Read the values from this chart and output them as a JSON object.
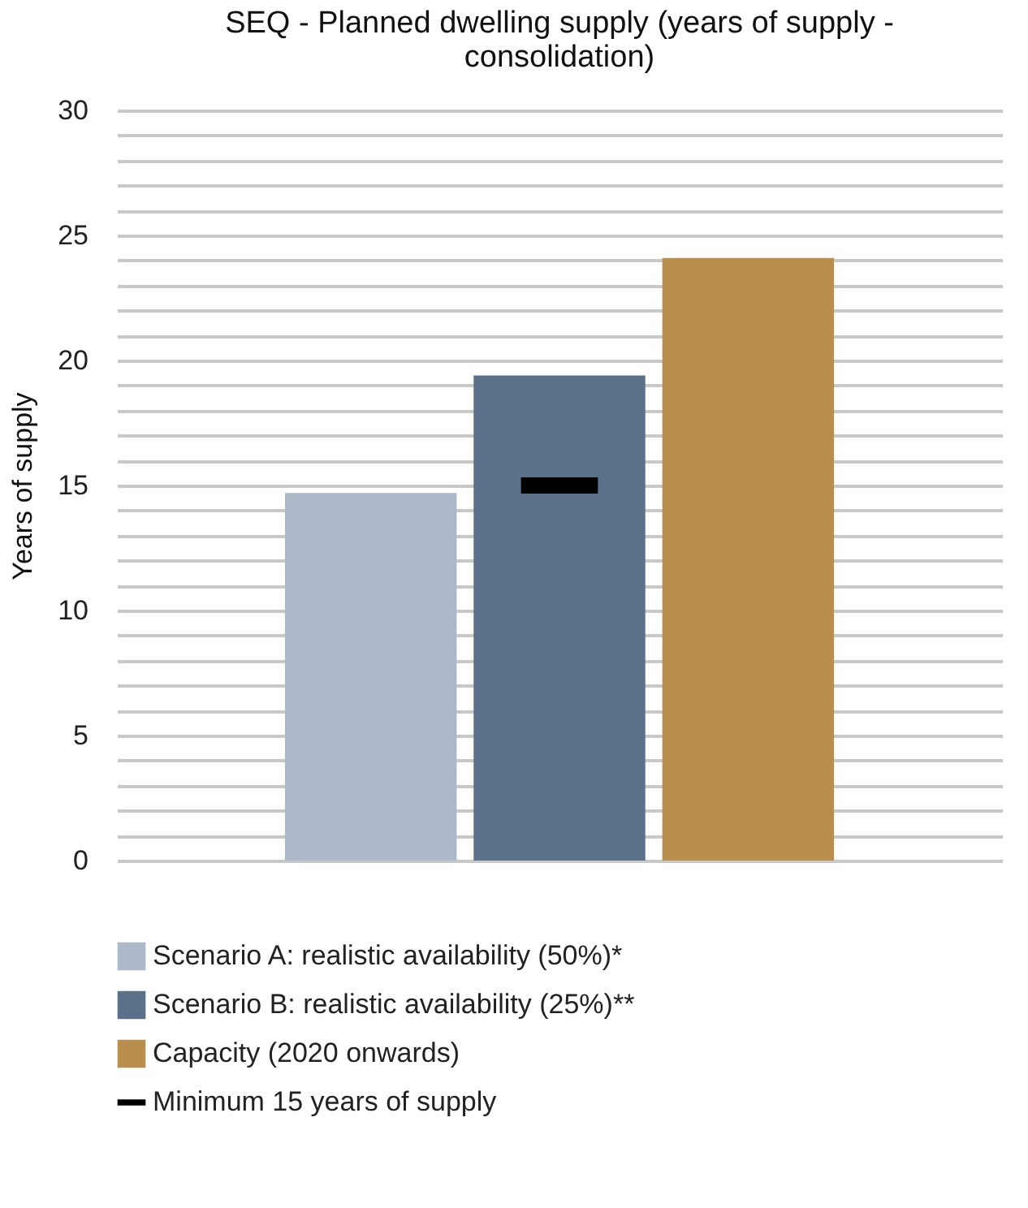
{
  "chart_data": {
    "type": "bar",
    "title": "SEQ - Planned dwelling supply (years of supply - consolidation)",
    "ylabel": "Years of supply",
    "categories": [
      null
    ],
    "series": [
      {
        "name": "Scenario A: realistic availability (50%)*",
        "color": "#adb9ca",
        "values": [
          14.7
        ]
      },
      {
        "name": "Scenario B: realistic availability (25%)**",
        "color": "#5b7089",
        "values": [
          19.4
        ]
      },
      {
        "name": "Capacity (2020 onwards)",
        "color": "#ba8e4c",
        "values": [
          24.1
        ]
      }
    ],
    "ref_lines": [
      {
        "axis": "y",
        "value": 15,
        "label": "Minimum 15 years of supply",
        "color": "#000000"
      }
    ],
    "ylim": [
      0,
      30
    ],
    "yticks": [
      0,
      {
        "value": 1,
        "label": null
      },
      {
        "value": 2,
        "label": null
      },
      {
        "value": 3,
        "label": null
      },
      {
        "value": 4,
        "label": null
      },
      5,
      {
        "value": 6,
        "label": null
      },
      {
        "value": 7,
        "label": null
      },
      {
        "value": 8,
        "label": null
      },
      {
        "value": 9,
        "label": null
      },
      10,
      {
        "value": 11,
        "label": null
      },
      {
        "value": 12,
        "label": null
      },
      {
        "value": 13,
        "label": null
      },
      {
        "value": 14,
        "label": null
      },
      15,
      {
        "value": 16,
        "label": null
      },
      {
        "value": 17,
        "label": null
      },
      {
        "value": 18,
        "label": null
      },
      {
        "value": 19,
        "label": null
      },
      20,
      {
        "value": 21,
        "label": null
      },
      {
        "value": 22,
        "label": null
      },
      {
        "value": 23,
        "label": null
      },
      {
        "value": 24,
        "label": null
      },
      25,
      {
        "value": 26,
        "label": null
      },
      {
        "value": 27,
        "label": null
      },
      {
        "value": 28,
        "label": null
      },
      {
        "value": 29,
        "label": null
      },
      30
    ],
    "grid": "y",
    "legend": "bottom",
    "tick_labels": "y"
  }
}
